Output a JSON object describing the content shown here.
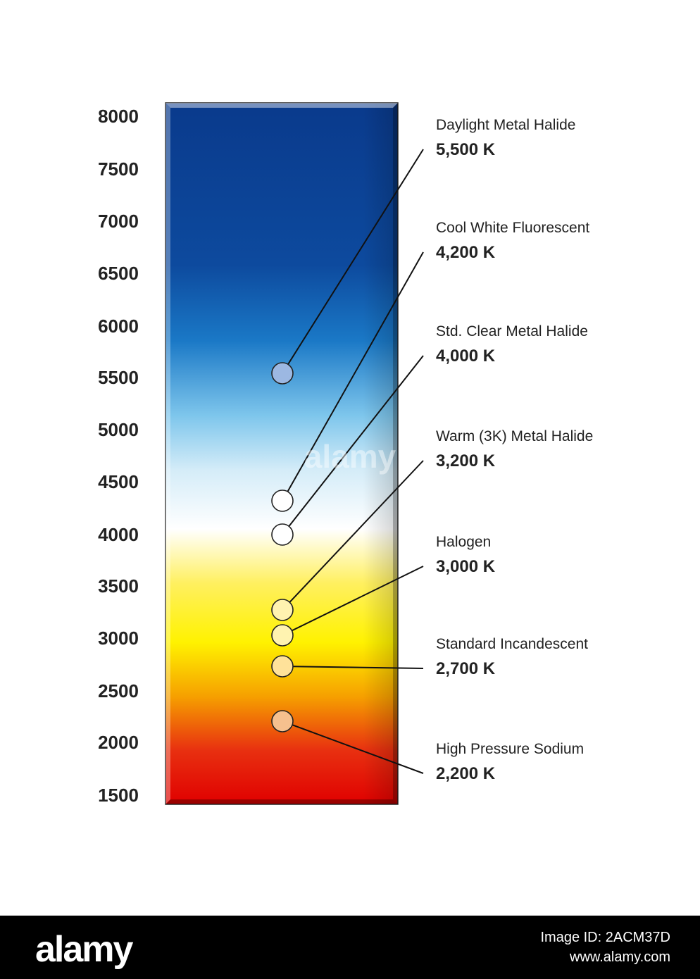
{
  "chart_data": {
    "type": "scatter",
    "title": "",
    "xlabel": "",
    "ylabel": "",
    "ylim": [
      1500,
      8000
    ],
    "yticks": [
      8000,
      7500,
      7000,
      6500,
      6000,
      5500,
      5000,
      4500,
      4000,
      3500,
      3000,
      2500,
      2000,
      1500
    ],
    "gradient_stops": [
      {
        "k": 8000,
        "color": "#0a3a8c"
      },
      {
        "k": 6500,
        "color": "#0d4a9e"
      },
      {
        "k": 5800,
        "color": "#1a78c6"
      },
      {
        "k": 5100,
        "color": "#7ec6ec"
      },
      {
        "k": 4600,
        "color": "#d4ecf8"
      },
      {
        "k": 4050,
        "color": "#ffffff"
      },
      {
        "k": 3550,
        "color": "#fff060"
      },
      {
        "k": 3000,
        "color": "#fff200"
      },
      {
        "k": 2500,
        "color": "#f6a000"
      },
      {
        "k": 2000,
        "color": "#e83010"
      },
      {
        "k": 1500,
        "color": "#e00000"
      }
    ],
    "points": [
      {
        "name": "Daylight Metal Halide",
        "label": "5,500 K",
        "value": 5500,
        "fill": "#9cb8e2"
      },
      {
        "name": "Cool White Fluorescent",
        "label": "4,200 K",
        "value": 4200,
        "fill": "#ffffff"
      },
      {
        "name": "Std. Clear Metal Halide",
        "label": "4,000 K",
        "value": 4000,
        "fill": "#ffffff"
      },
      {
        "name": "Warm (3K) Metal Halide",
        "label": "3,200 K",
        "value": 3200,
        "fill": "#fff3b0"
      },
      {
        "name": "Halogen",
        "label": "3,000 K",
        "value": 3000,
        "fill": "#fff3b0"
      },
      {
        "name": "Standard Incandescent",
        "label": "2,700 K",
        "value": 2700,
        "fill": "#ffe29a"
      },
      {
        "name": "High Pressure Sodium",
        "label": "2,200 K",
        "value": 2200,
        "fill": "#f6c08e"
      }
    ]
  },
  "watermark": "alamy",
  "footer": {
    "logo": "alamy",
    "image_id": "Image ID: 2ACM37D",
    "url": "www.alamy.com"
  }
}
